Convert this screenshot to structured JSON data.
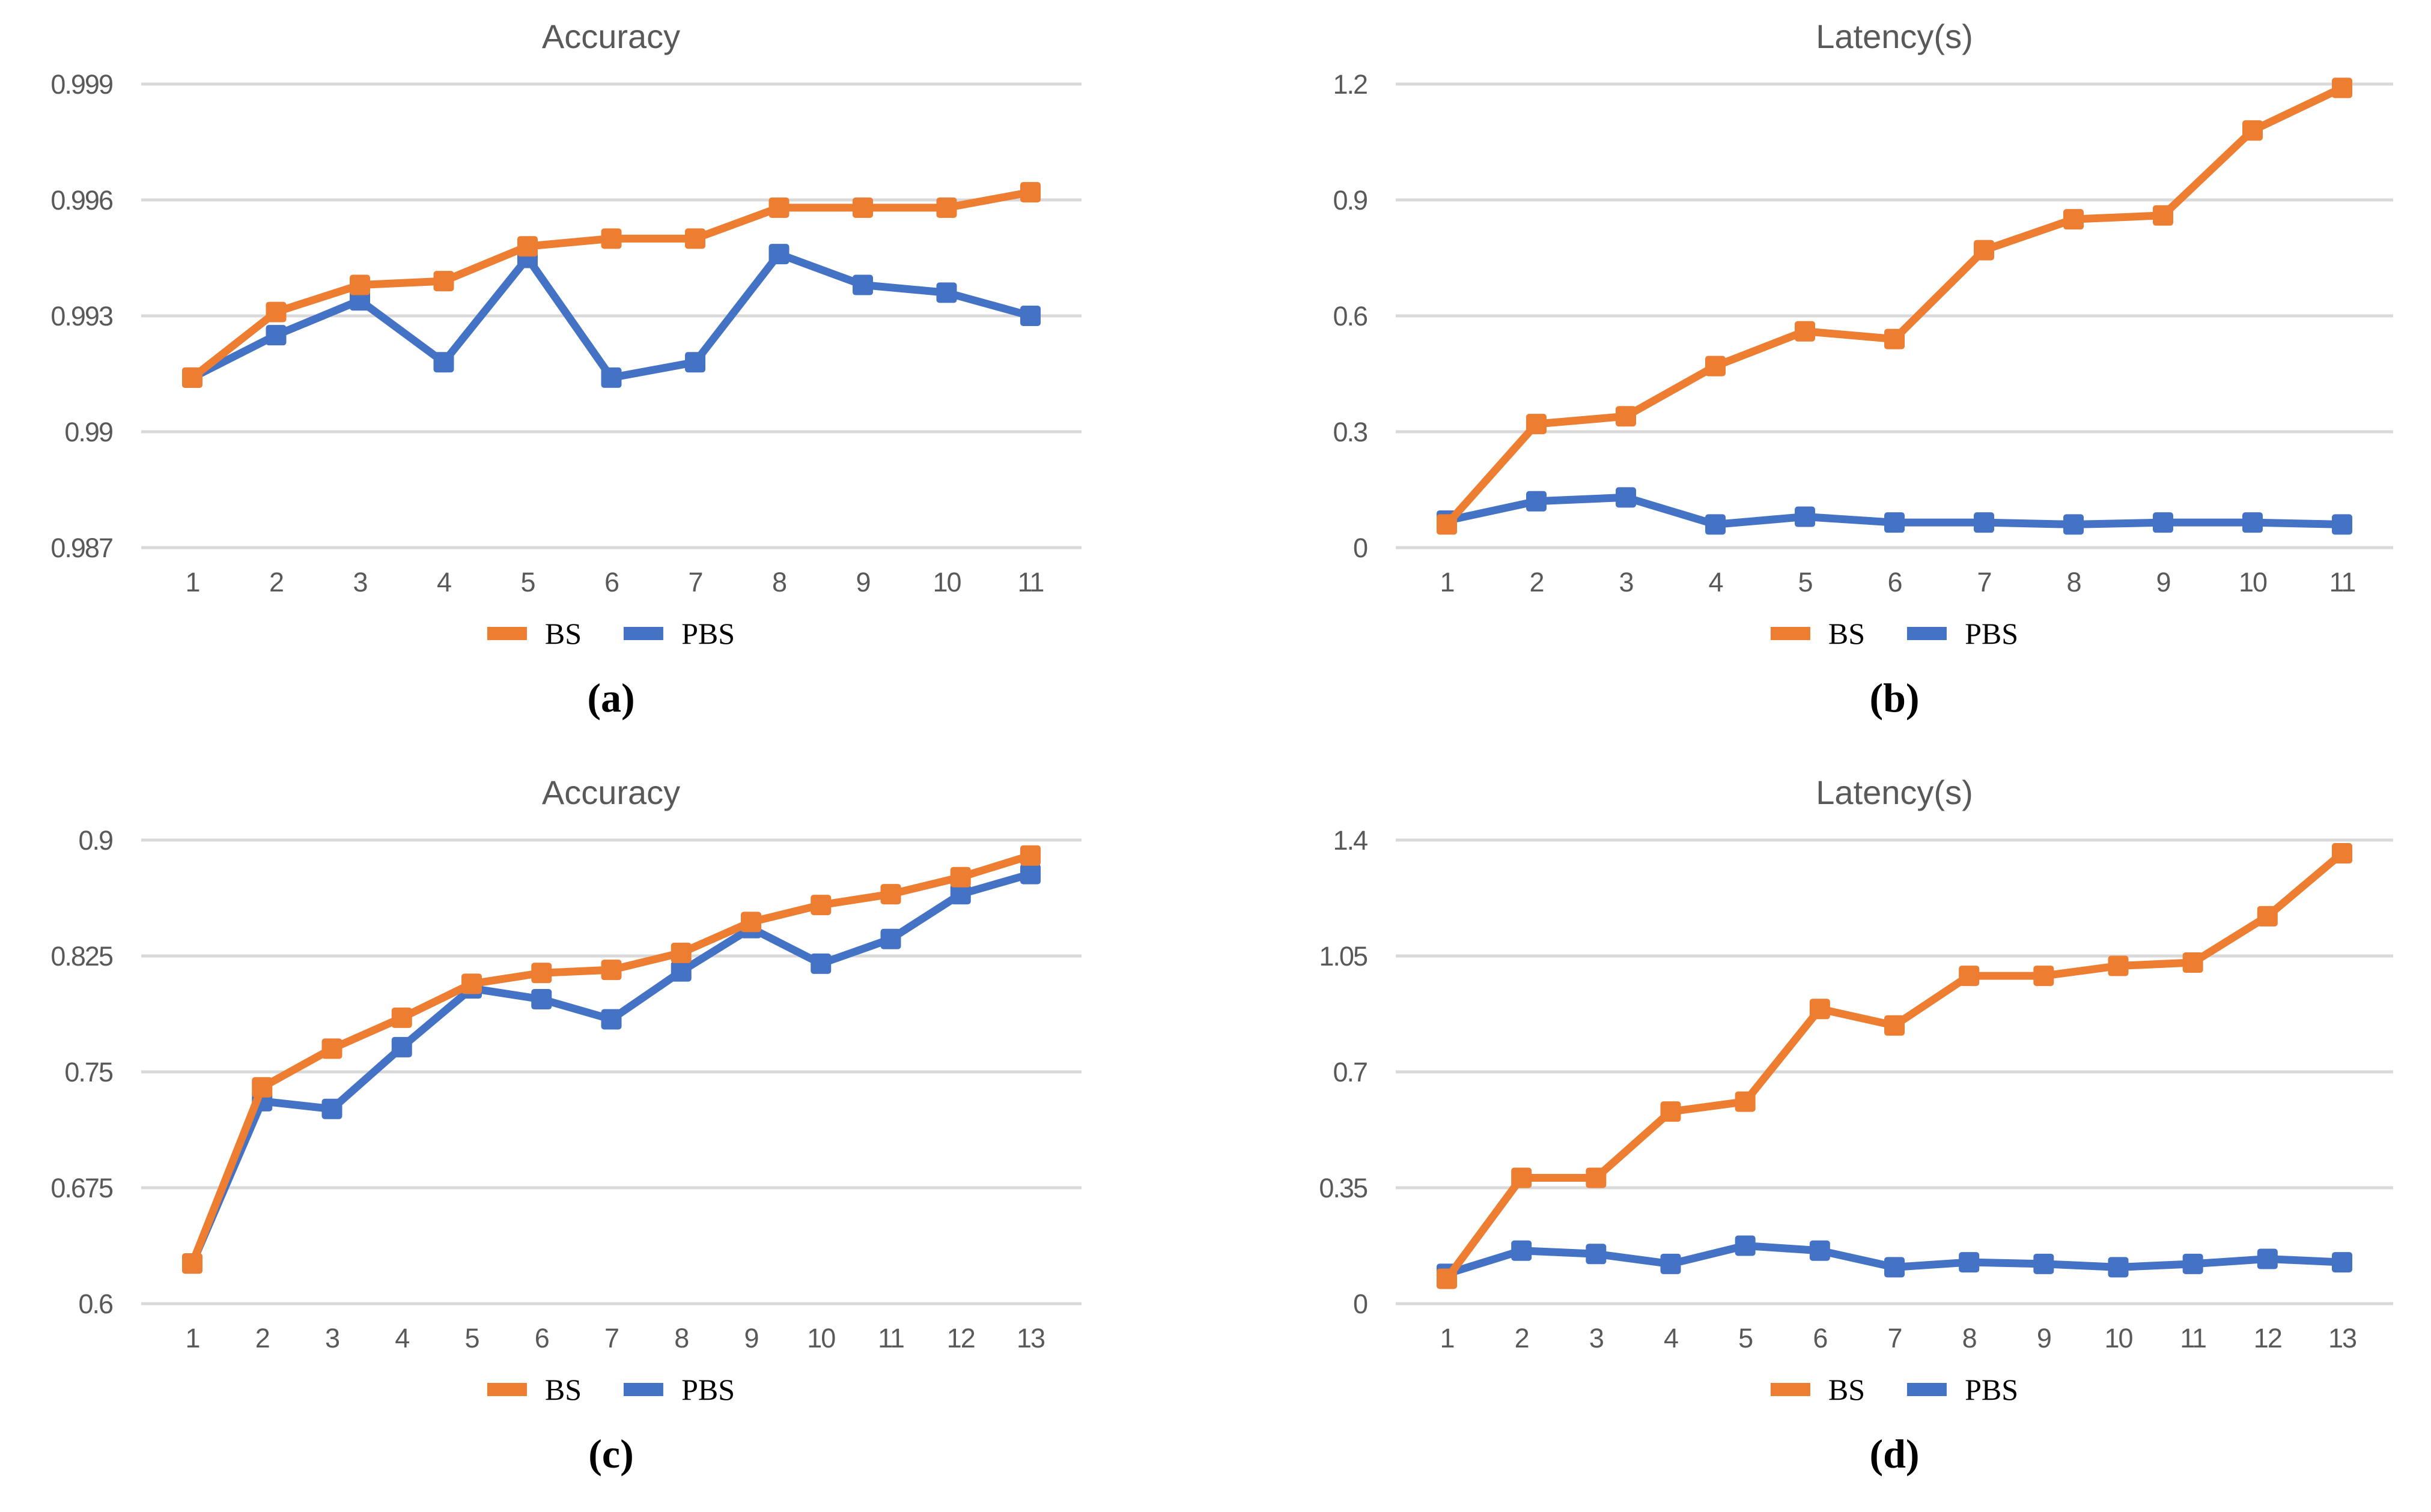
{
  "figure": {
    "background": "#FFFFFF",
    "colors": {
      "bs": "#ED7D31",
      "pbs": "#4472C4",
      "gridline": "#D9D9D9",
      "tick_label": "#595959",
      "title_text": "#595959",
      "legend_text": "#000000"
    }
  },
  "chart_data": [
    {
      "type": "line",
      "panel": "a",
      "title": "Accuracy",
      "sublabel": "(a)",
      "x": [
        1,
        2,
        3,
        4,
        5,
        6,
        7,
        8,
        9,
        10,
        11
      ],
      "series": [
        {
          "name": "BS",
          "color": "bs",
          "values": [
            0.9914,
            0.9931,
            0.9938,
            0.9939,
            0.9948,
            0.995,
            0.995,
            0.9958,
            0.9958,
            0.9958,
            0.9962
          ]
        },
        {
          "name": "PBS",
          "color": "pbs",
          "values": [
            0.9914,
            0.9925,
            0.9934,
            0.9918,
            0.9945,
            0.9914,
            0.9918,
            0.9946,
            0.9938,
            0.9936,
            0.993
          ]
        }
      ],
      "ylim": [
        0.987,
        0.999
      ],
      "ytick_labels": [
        "0.999",
        "0.996",
        "0.993",
        "0.99",
        "0.987"
      ],
      "grid": true,
      "legend_position": "bottom"
    },
    {
      "type": "line",
      "panel": "b",
      "title": "Latency(s)",
      "sublabel": "(b)",
      "x": [
        1,
        2,
        3,
        4,
        5,
        6,
        7,
        8,
        9,
        10,
        11
      ],
      "series": [
        {
          "name": "BS",
          "color": "bs",
          "values": [
            0.06,
            0.32,
            0.34,
            0.47,
            0.56,
            0.54,
            0.77,
            0.85,
            0.86,
            1.08,
            1.19
          ]
        },
        {
          "name": "PBS",
          "color": "pbs",
          "values": [
            0.07,
            0.12,
            0.13,
            0.06,
            0.08,
            0.065,
            0.065,
            0.06,
            0.065,
            0.065,
            0.06
          ]
        }
      ],
      "ylim": [
        0,
        1.2
      ],
      "ytick_labels": [
        "1.2",
        "0.9",
        "0.6",
        "0.3",
        "0"
      ],
      "grid": true,
      "legend_position": "bottom"
    },
    {
      "type": "line",
      "panel": "c",
      "title": "Accuracy",
      "sublabel": "(c)",
      "x": [
        1,
        2,
        3,
        4,
        5,
        6,
        7,
        8,
        9,
        10,
        11,
        12,
        13
      ],
      "series": [
        {
          "name": "BS",
          "color": "bs",
          "values": [
            0.626,
            0.74,
            0.765,
            0.785,
            0.807,
            0.814,
            0.816,
            0.827,
            0.847,
            0.858,
            0.865,
            0.876,
            0.89
          ]
        },
        {
          "name": "PBS",
          "color": "pbs",
          "values": [
            0.626,
            0.731,
            0.726,
            0.766,
            0.804,
            0.797,
            0.784,
            0.815,
            0.843,
            0.82,
            0.836,
            0.865,
            0.878
          ]
        }
      ],
      "ylim": [
        0.6,
        0.9
      ],
      "ytick_labels": [
        "0.9",
        "0.825",
        "0.75",
        "0.675",
        "0.6"
      ],
      "grid": true,
      "legend_position": "bottom"
    },
    {
      "type": "line",
      "panel": "d",
      "title": "Latency(s)",
      "sublabel": "(d)",
      "x": [
        1,
        2,
        3,
        4,
        5,
        6,
        7,
        8,
        9,
        10,
        11,
        12,
        13
      ],
      "series": [
        {
          "name": "BS",
          "color": "bs",
          "values": [
            0.075,
            0.38,
            0.38,
            0.58,
            0.61,
            0.89,
            0.84,
            0.99,
            0.99,
            1.02,
            1.03,
            1.17,
            1.36
          ]
        },
        {
          "name": "PBS",
          "color": "pbs",
          "values": [
            0.09,
            0.16,
            0.15,
            0.12,
            0.175,
            0.16,
            0.11,
            0.125,
            0.12,
            0.11,
            0.12,
            0.135,
            0.125
          ]
        }
      ],
      "ylim": [
        0,
        1.4
      ],
      "ytick_labels": [
        "1.4",
        "1.05",
        "0.7",
        "0.35",
        "0"
      ],
      "grid": true,
      "legend_position": "bottom"
    }
  ]
}
